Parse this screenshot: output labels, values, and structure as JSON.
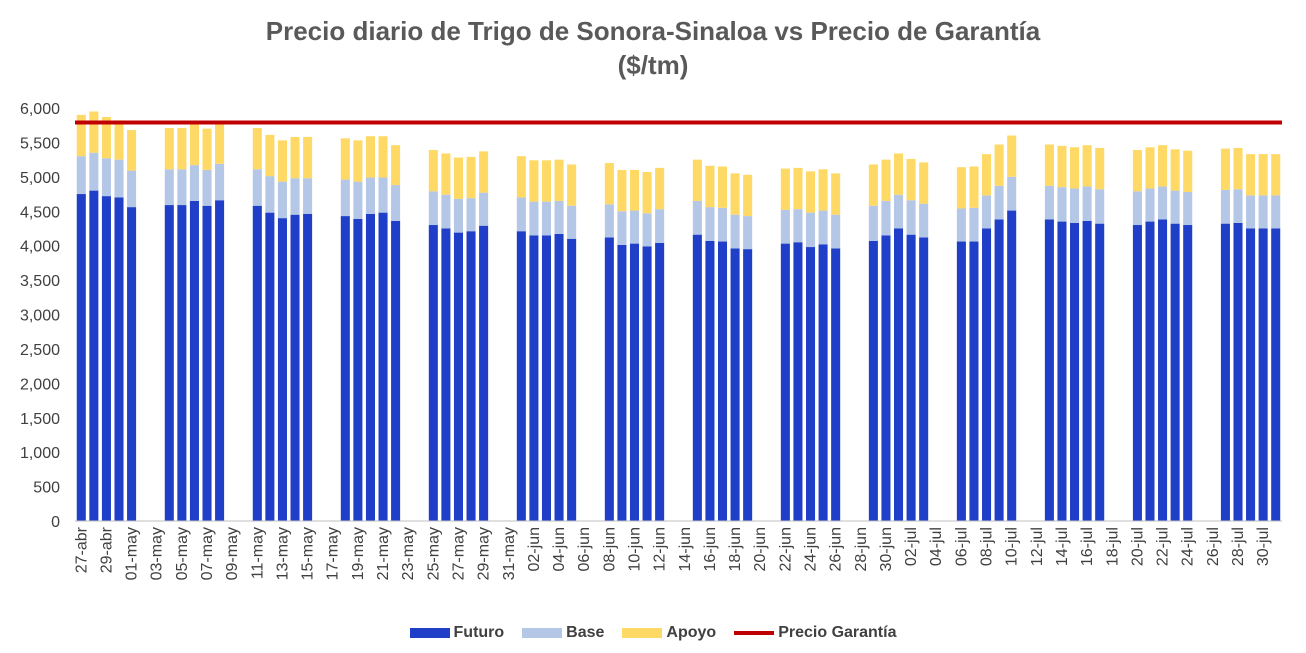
{
  "chart_data": {
    "type": "bar",
    "stacked": true,
    "title": "Precio diario de Trigo de Sonora-Sinaloa vs Precio de Garantía",
    "subtitle": "($/tm)",
    "ylim": [
      0,
      6000
    ],
    "yticks": [
      "0",
      "500",
      "1,000",
      "1,500",
      "2,000",
      "2,500",
      "3,000",
      "3,500",
      "4,000",
      "4,500",
      "5,000",
      "5,500",
      "6,000"
    ],
    "xtick_labels": [
      "27-abr",
      "29-abr",
      "01-may",
      "03-may",
      "05-may",
      "07-may",
      "09-may",
      "11-may",
      "13-may",
      "15-may",
      "17-may",
      "19-may",
      "21-may",
      "23-may",
      "25-may",
      "27-may",
      "29-may",
      "31-may",
      "02-jun",
      "04-jun",
      "06-jun",
      "08-jun",
      "10-jun",
      "12-jun",
      "14-jun",
      "16-jun",
      "18-jun",
      "20-jun",
      "22-jun",
      "24-jun",
      "26-jun",
      "28-jun",
      "30-jun",
      "02-jul",
      "04-jul",
      "06-jul",
      "08-jul",
      "10-jul",
      "12-jul",
      "14-jul",
      "16-jul",
      "18-jul",
      "20-jul",
      "22-jul",
      "24-jul",
      "26-jul",
      "28-jul",
      "30-jul"
    ],
    "day_slots": 96,
    "trading_days": [
      0,
      1,
      2,
      3,
      4,
      7,
      8,
      9,
      10,
      11,
      14,
      15,
      16,
      17,
      18,
      21,
      22,
      23,
      24,
      25,
      28,
      29,
      30,
      31,
      32,
      35,
      36,
      37,
      38,
      39,
      42,
      43,
      44,
      45,
      46,
      49,
      50,
      51,
      52,
      53,
      56,
      57,
      58,
      59,
      60,
      63,
      64,
      65,
      66,
      67,
      70,
      71,
      72,
      73,
      74,
      77,
      78,
      79,
      80,
      81,
      84,
      85,
      86,
      87,
      88,
      91,
      92,
      93,
      94,
      95
    ],
    "series": [
      {
        "name": "Futuro",
        "color": "#1f3fc8",
        "values": [
          4750,
          4800,
          4720,
          4700,
          4560,
          4590,
          4590,
          4650,
          4580,
          4660,
          4580,
          4480,
          4400,
          4450,
          4460,
          4430,
          4390,
          4460,
          4480,
          4360,
          4300,
          4250,
          4190,
          4210,
          4290,
          4210,
          4150,
          4150,
          4170,
          4100,
          4120,
          4010,
          4030,
          3990,
          4040,
          4160,
          4070,
          4060,
          3960,
          3950,
          4030,
          4050,
          3980,
          4020,
          3960,
          4070,
          4150,
          4250,
          4160,
          4120,
          4060,
          4060,
          4250,
          4380,
          4510,
          4380,
          4350,
          4330,
          4360,
          4320,
          4300,
          4350,
          4380,
          4320,
          4300,
          4320,
          4330,
          4250,
          4250,
          4250
        ]
      },
      {
        "name": "Base",
        "color": "#b4c7e7",
        "values": [
          550,
          550,
          550,
          550,
          530,
          520,
          520,
          520,
          520,
          530,
          530,
          530,
          530,
          530,
          520,
          530,
          540,
          530,
          510,
          520,
          490,
          490,
          490,
          480,
          480,
          490,
          490,
          490,
          480,
          480,
          480,
          490,
          480,
          480,
          490,
          490,
          490,
          490,
          490,
          480,
          490,
          480,
          500,
          490,
          490,
          510,
          500,
          490,
          500,
          490,
          480,
          490,
          480,
          490,
          490,
          490,
          500,
          500,
          500,
          500,
          490,
          480,
          480,
          480,
          480,
          490,
          490,
          480,
          480,
          480
        ]
      },
      {
        "name": "Apoyo",
        "color": "#ffd966",
        "values": [
          600,
          600,
          600,
          570,
          590,
          600,
          600,
          600,
          600,
          590,
          600,
          600,
          600,
          600,
          600,
          600,
          600,
          600,
          600,
          580,
          600,
          600,
          600,
          600,
          600,
          600,
          600,
          600,
          600,
          600,
          600,
          600,
          590,
          600,
          600,
          600,
          600,
          600,
          600,
          600,
          600,
          600,
          600,
          600,
          600,
          600,
          600,
          600,
          600,
          600,
          600,
          600,
          600,
          600,
          600,
          600,
          600,
          600,
          600,
          600,
          600,
          600,
          600,
          600,
          600,
          600,
          600,
          600,
          600,
          600
        ]
      }
    ],
    "reference_line": {
      "name": "Precio Garantía",
      "value": 5790,
      "color": "#c00000"
    },
    "legend": [
      "Futuro",
      "Base",
      "Apoyo",
      "Precio Garantía"
    ],
    "legend_position": "bottom"
  }
}
